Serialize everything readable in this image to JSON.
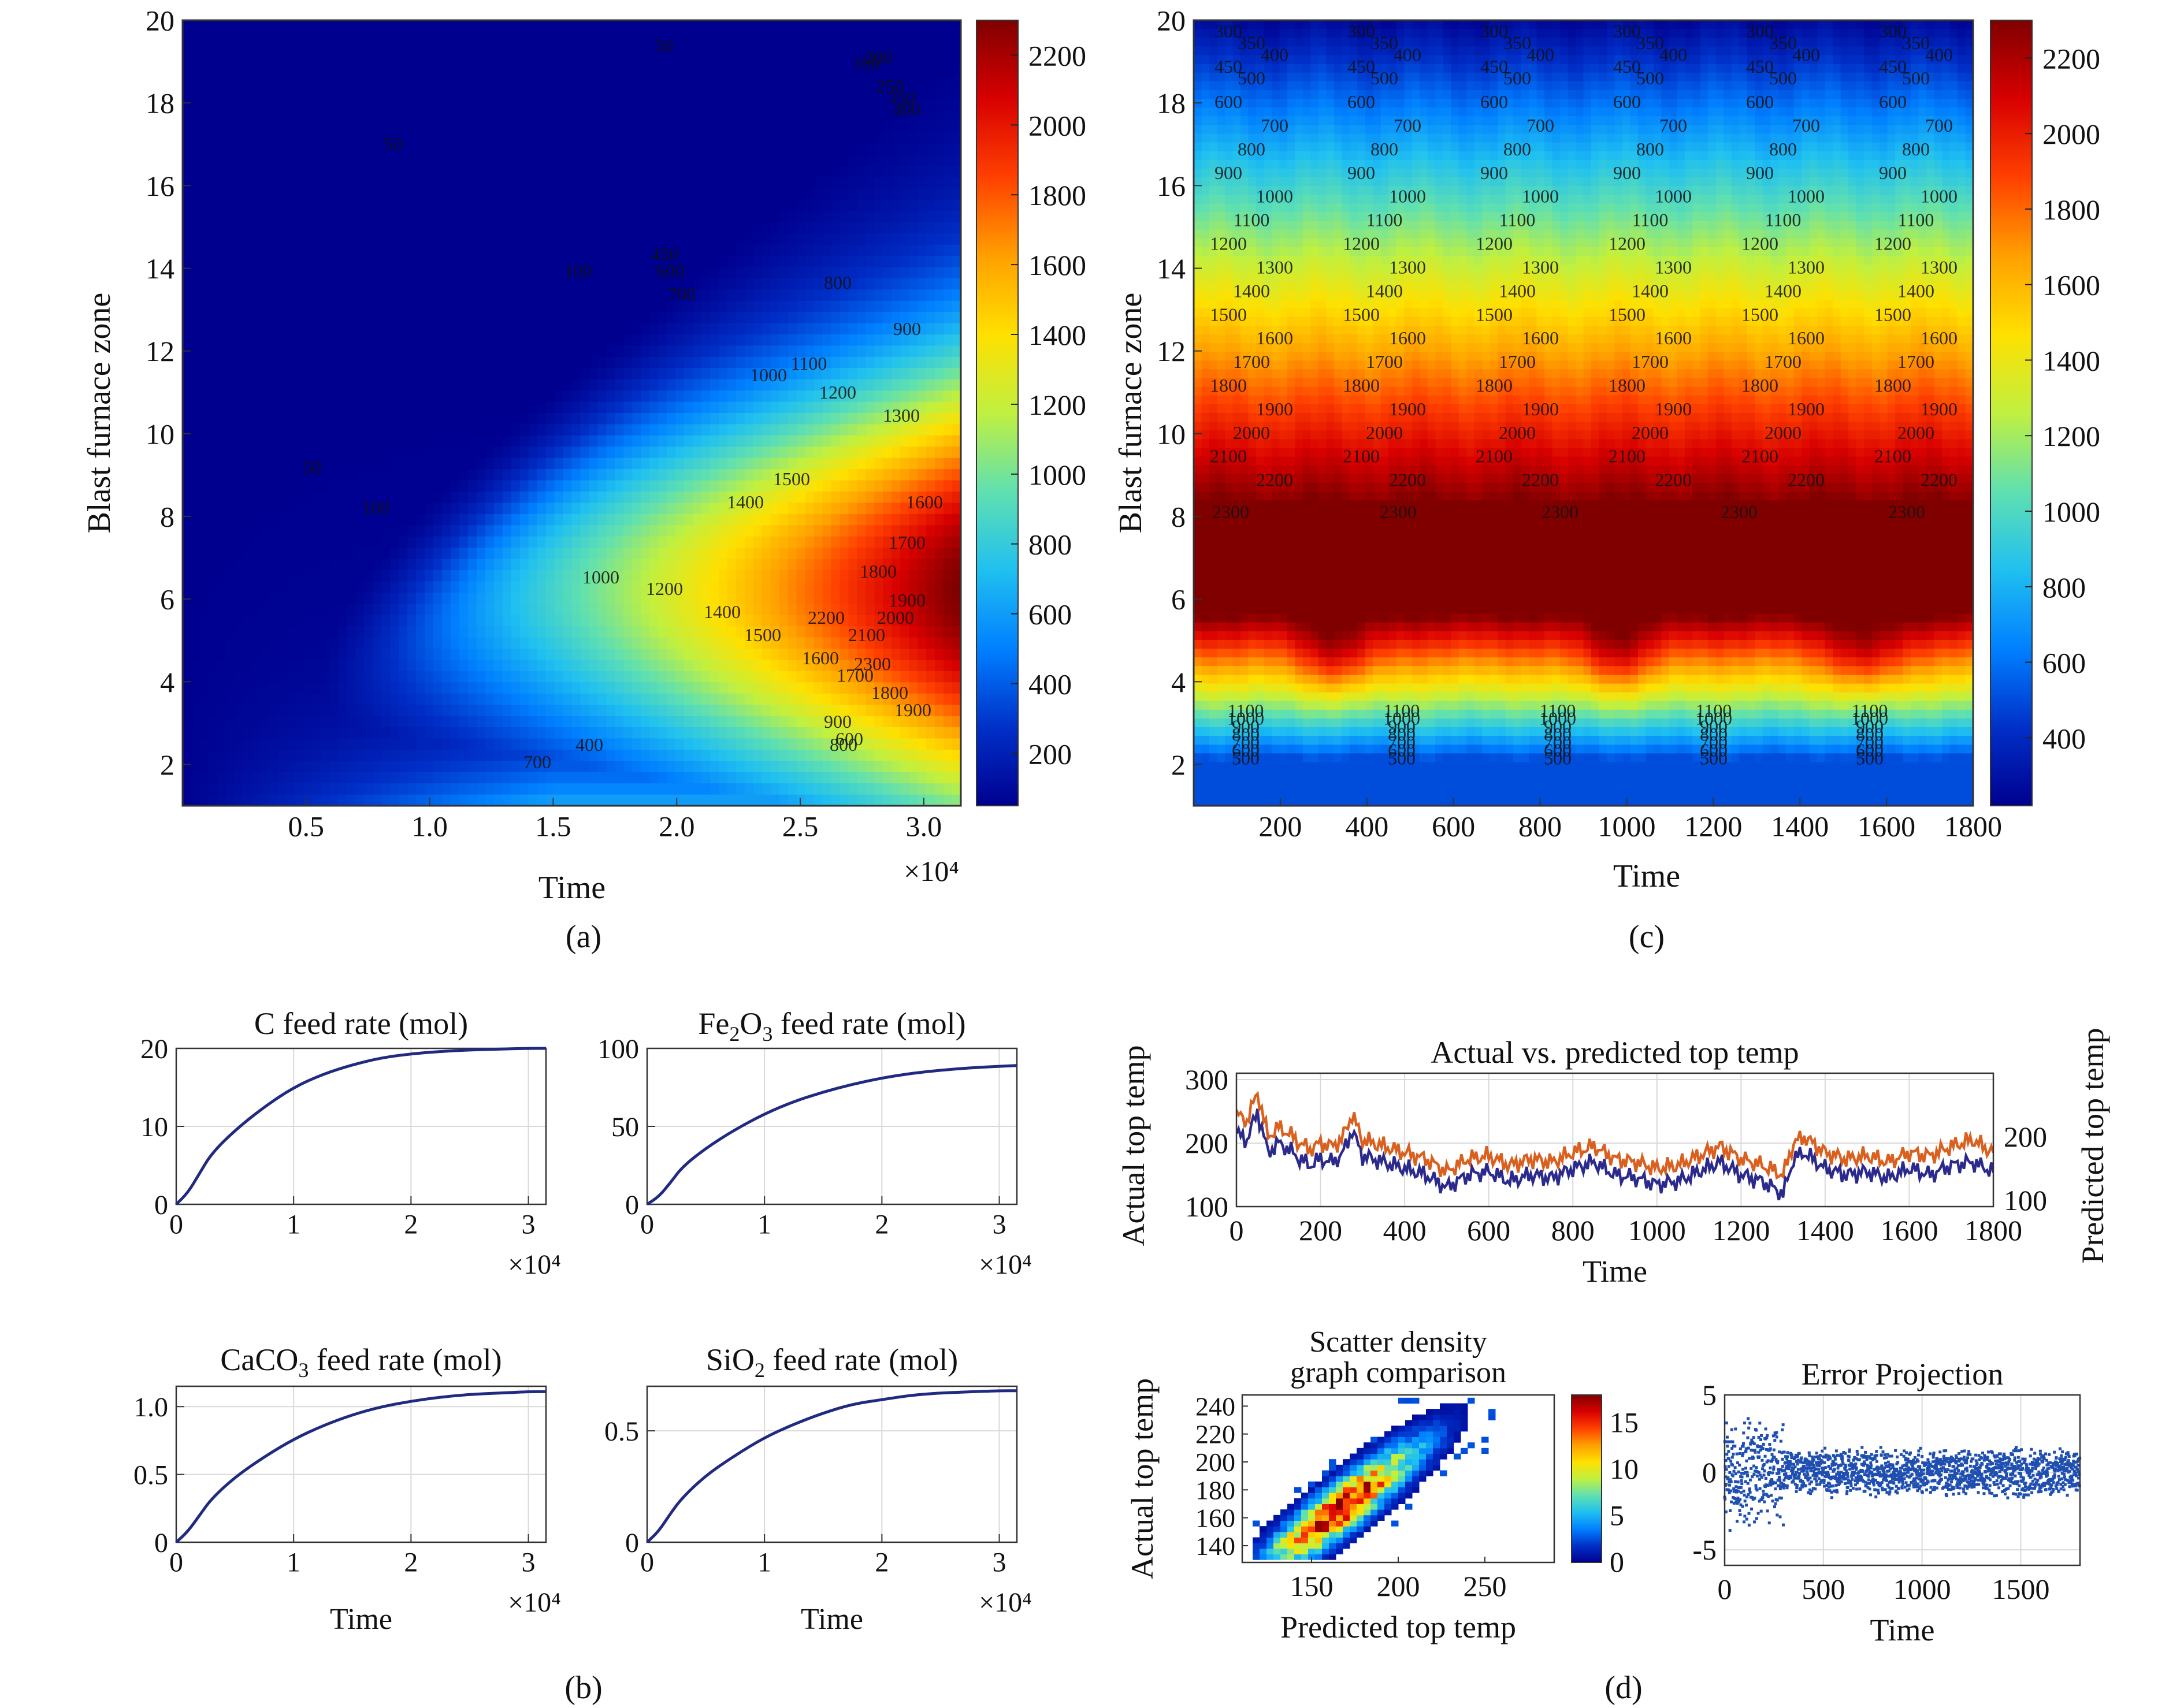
{
  "colors": {
    "axis": "#333333",
    "grid": "#d9d9d9",
    "line": "#1f2a80",
    "actual": "#2b2a8c",
    "predicted": "#d9601f",
    "scatter": "#1f4fb0",
    "colormap": [
      "#00008f",
      "#0030c8",
      "#0080ff",
      "#20c0f0",
      "#60e0b0",
      "#c0f040",
      "#ffe000",
      "#ffa000",
      "#ff4000",
      "#d80000",
      "#800000"
    ]
  },
  "panel_labels": [
    "(a)",
    "(b)",
    "(c)",
    "(d)"
  ],
  "chart_data": [
    {
      "id": "a",
      "type": "heatmap",
      "xlabel": "Time",
      "ylabel": "Blast furnace zone",
      "x_multiplier": "×10⁴",
      "xticks": [
        0.5,
        1.0,
        1.5,
        2.0,
        2.5,
        3.0
      ],
      "xtick_labels": [
        "0.5",
        "1.0",
        "1.5",
        "2.0",
        "2.5",
        "3.0"
      ],
      "xlim": [
        0,
        3.15
      ],
      "yticks": [
        2,
        4,
        6,
        8,
        10,
        12,
        14,
        16,
        18,
        20
      ],
      "ylim": [
        1,
        20
      ],
      "zlim": [
        50,
        2300
      ],
      "colorbar_ticks": [
        200,
        400,
        600,
        800,
        1000,
        1200,
        1400,
        1600,
        1800,
        2000,
        2200
      ],
      "contour_labels": [
        "50",
        "50",
        "50",
        "100",
        "100",
        "100",
        "150",
        "200",
        "250",
        "350",
        "400",
        "450",
        "600",
        "700",
        "800",
        "900",
        "1000",
        "1100",
        "1200",
        "1300",
        "1400",
        "1500",
        "1600",
        "1700",
        "1800",
        "1900",
        "2000",
        "2100",
        "2200",
        "2300",
        "500",
        "600",
        "800",
        "900",
        "1000",
        "1200",
        "1400",
        "1500",
        "1600",
        "1700",
        "1800",
        "1900",
        "300",
        "400",
        "700"
      ]
    },
    {
      "id": "c",
      "type": "heatmap",
      "xlabel": "Time",
      "ylabel": "Blast furnace zone",
      "xticks": [
        200,
        400,
        600,
        800,
        1000,
        1200,
        1400,
        1600,
        1800
      ],
      "xlim": [
        0,
        1800
      ],
      "yticks": [
        2,
        4,
        6,
        8,
        10,
        12,
        14,
        16,
        18,
        20
      ],
      "ylim": [
        1,
        20
      ],
      "zlim": [
        220,
        2300
      ],
      "colorbar_ticks": [
        400,
        600,
        800,
        1000,
        1200,
        1400,
        1600,
        1800,
        2000,
        2200
      ],
      "contour_levels": [
        250,
        300,
        350,
        400,
        450,
        500,
        600,
        700,
        800,
        900,
        1000,
        1100,
        1200,
        1300,
        1400,
        1500,
        1600,
        1700,
        1800,
        1900,
        2000,
        2100,
        2200,
        2300
      ]
    },
    {
      "id": "b1",
      "type": "line",
      "title_parts": [
        "C feed rate (mol)"
      ],
      "xlabel": "",
      "x_multiplier": "×10⁴",
      "xticks": [
        0,
        1,
        2,
        3
      ],
      "xlim": [
        0,
        3.15
      ],
      "yticks": [
        0,
        10,
        20
      ],
      "ylim": [
        0,
        20
      ],
      "x": [
        0,
        0.1,
        0.2,
        0.3,
        0.5,
        0.75,
        1.0,
        1.25,
        1.5,
        1.75,
        2.0,
        2.25,
        2.5,
        2.75,
        3.0,
        3.15
      ],
      "series": [
        {
          "values": [
            0,
            1.5,
            4,
            6.5,
            9.5,
            12.5,
            15,
            16.7,
            17.9,
            18.8,
            19.3,
            19.6,
            19.8,
            19.9,
            20,
            20
          ]
        }
      ]
    },
    {
      "id": "b2",
      "type": "line",
      "title_parts": [
        "Fe",
        "2",
        "O",
        "3",
        " feed rate (mol)"
      ],
      "xlabel": "",
      "x_multiplier": "×10⁴",
      "xticks": [
        0,
        1,
        2,
        3
      ],
      "xlim": [
        0,
        3.15
      ],
      "yticks": [
        0,
        50,
        100
      ],
      "ylim": [
        0,
        100
      ],
      "x": [
        0,
        0.1,
        0.2,
        0.3,
        0.5,
        0.75,
        1.0,
        1.25,
        1.5,
        1.75,
        2.0,
        2.25,
        2.5,
        2.75,
        3.0,
        3.15
      ],
      "series": [
        {
          "values": [
            0,
            5,
            14,
            24,
            36,
            48,
            58,
            66,
            72,
            77,
            81,
            84,
            86,
            87.5,
            88.5,
            89
          ]
        }
      ]
    },
    {
      "id": "b3",
      "type": "line",
      "title_parts": [
        "CaCO",
        "3",
        " feed rate (mol)"
      ],
      "xlabel": "Time",
      "x_multiplier": "×10⁴",
      "xticks": [
        0,
        1,
        2,
        3
      ],
      "xlim": [
        0,
        3.15
      ],
      "yticks": [
        0,
        0.5,
        1.0
      ],
      "ytick_labels": [
        "0",
        "0.5",
        "1.0"
      ],
      "ylim": [
        0,
        1.15
      ],
      "x": [
        0,
        0.1,
        0.2,
        0.3,
        0.5,
        0.75,
        1.0,
        1.25,
        1.5,
        1.75,
        2.0,
        2.25,
        2.5,
        2.75,
        3.0,
        3.15
      ],
      "series": [
        {
          "values": [
            0,
            0.08,
            0.2,
            0.32,
            0.48,
            0.63,
            0.76,
            0.86,
            0.94,
            1.0,
            1.04,
            1.07,
            1.09,
            1.1,
            1.11,
            1.11
          ]
        }
      ]
    },
    {
      "id": "b4",
      "type": "line",
      "title_parts": [
        "SiO",
        "2",
        " feed rate (mol)"
      ],
      "xlabel": "Time",
      "x_multiplier": "×10⁴",
      "xticks": [
        0,
        1,
        2,
        3
      ],
      "xlim": [
        0,
        3.15
      ],
      "yticks": [
        0,
        0.5
      ],
      "ylim": [
        0,
        0.7
      ],
      "x": [
        0,
        0.1,
        0.2,
        0.3,
        0.5,
        0.75,
        1.0,
        1.25,
        1.5,
        1.75,
        2.0,
        2.25,
        2.5,
        2.75,
        3.0,
        3.15
      ],
      "series": [
        {
          "values": [
            0,
            0.05,
            0.13,
            0.2,
            0.3,
            0.39,
            0.47,
            0.53,
            0.58,
            0.62,
            0.64,
            0.66,
            0.67,
            0.675,
            0.68,
            0.68
          ]
        }
      ]
    },
    {
      "id": "d1",
      "type": "line",
      "title": "Actual vs. predicted top temp",
      "xlabel": "Time",
      "ylabel": "Actual top temp",
      "ylabel_right": "Predicted top temp",
      "xticks": [
        0,
        200,
        400,
        600,
        800,
        1000,
        1200,
        1400,
        1600,
        1800
      ],
      "xlim": [
        0,
        1800
      ],
      "yticks": [
        100,
        200,
        300
      ],
      "ylim": [
        100,
        310
      ],
      "yticks_right": [
        100,
        200
      ],
      "ylim_right": [
        90,
        300
      ],
      "x": [
        0,
        25,
        50,
        75,
        100,
        125,
        150,
        175,
        200,
        225,
        250,
        275,
        300,
        350,
        400,
        450,
        500,
        550,
        600,
        650,
        700,
        750,
        800,
        850,
        900,
        950,
        1000,
        1050,
        1100,
        1150,
        1200,
        1250,
        1300,
        1325,
        1350,
        1400,
        1450,
        1500,
        1550,
        1600,
        1650,
        1700,
        1750,
        1800
      ],
      "series": [
        {
          "name": "Actual",
          "values": [
            215,
            205,
            250,
            185,
            200,
            190,
            175,
            165,
            175,
            170,
            180,
            220,
            180,
            170,
            160,
            150,
            130,
            150,
            155,
            140,
            150,
            145,
            160,
            170,
            150,
            145,
            135,
            140,
            155,
            170,
            150,
            140,
            120,
            175,
            185,
            160,
            150,
            155,
            145,
            160,
            150,
            165,
            170,
            155
          ]
        },
        {
          "name": "Predicted",
          "values": [
            235,
            225,
            270,
            200,
            215,
            205,
            190,
            180,
            190,
            185,
            195,
            235,
            195,
            185,
            175,
            165,
            145,
            165,
            170,
            155,
            165,
            160,
            175,
            185,
            165,
            160,
            150,
            155,
            170,
            185,
            165,
            155,
            140,
            190,
            200,
            175,
            165,
            170,
            160,
            175,
            170,
            185,
            195,
            175
          ]
        }
      ]
    },
    {
      "id": "d2",
      "type": "heatmap",
      "title_lines": [
        "Scatter density",
        "graph comparison"
      ],
      "xlabel": "Predicted top temp",
      "ylabel": "Actual top temp",
      "xticks": [
        150,
        200,
        250
      ],
      "xlim": [
        110,
        290
      ],
      "yticks": [
        140,
        160,
        180,
        200,
        220,
        240
      ],
      "ylim": [
        128,
        248
      ],
      "colorbar_ticks": [
        0,
        5,
        10,
        15
      ],
      "zlim": [
        0,
        18
      ]
    },
    {
      "id": "d3",
      "type": "scatter",
      "title": "Error Projection",
      "xlabel": "Time",
      "xticks": [
        0,
        500,
        1000,
        1500
      ],
      "xlim": [
        0,
        1800
      ],
      "yticks": [
        -5,
        0,
        5
      ],
      "ylim": [
        -6,
        5
      ],
      "point_count": 1800
    }
  ]
}
